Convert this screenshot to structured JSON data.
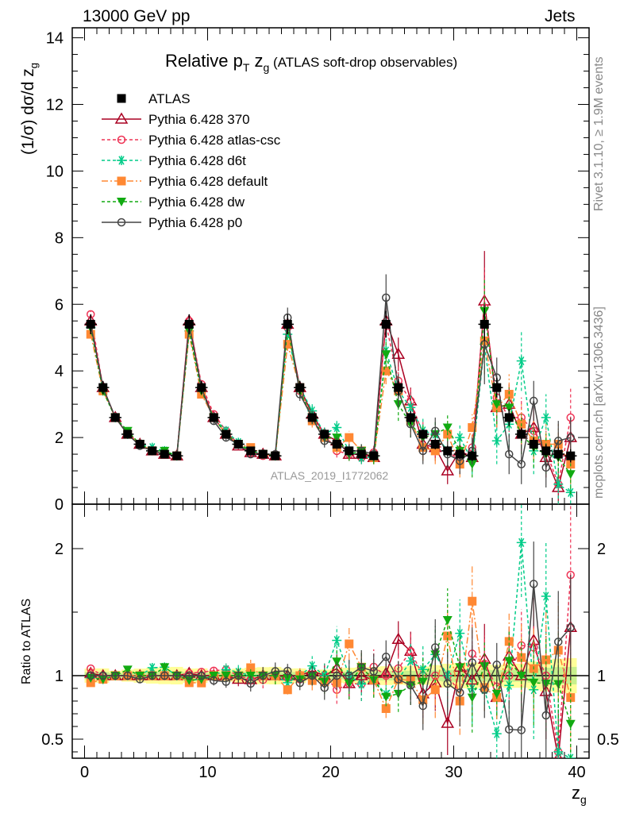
{
  "header": {
    "left": "13000 GeV pp",
    "right": "Jets"
  },
  "side_labels": {
    "rivet": "Rivet 3.1.10, ≥ 1.9M events",
    "mcplots": "mcplots.cern.ch [arXiv:1306.3436]"
  },
  "watermark": "ATLAS_2019_I1772062",
  "chart_data": {
    "type": "line",
    "title": {
      "main": "Relative p",
      "sub": "T",
      "tail": " z",
      "tail_sub": "g",
      "note": " (ATLAS soft-drop observables)"
    },
    "xlabel": {
      "main": "z",
      "sub": "g"
    },
    "ylabel": "(1/σ) dσ/d z",
    "ylabel_sub": "g",
    "ratio_ylabel": "Ratio to ATLAS",
    "xlim": [
      -1,
      41
    ],
    "ylim": [
      0,
      14.3
    ],
    "ratio_ylim": [
      0.35,
      2.35
    ],
    "x_ticks": [
      0,
      10,
      20,
      30,
      40
    ],
    "y_ticks": [
      0,
      2,
      4,
      6,
      8,
      10,
      12,
      14
    ],
    "ratio_ticks": [
      0.5,
      1,
      2
    ],
    "x": [
      0.5,
      1.5,
      2.5,
      3.5,
      4.5,
      5.5,
      6.5,
      7.5,
      8.5,
      9.5,
      10.5,
      11.5,
      12.5,
      13.5,
      14.5,
      15.5,
      16.5,
      17.5,
      18.5,
      19.5,
      20.5,
      21.5,
      22.5,
      23.5,
      24.5,
      25.5,
      26.5,
      27.5,
      28.5,
      29.5,
      30.5,
      31.5,
      32.5,
      33.5,
      34.5,
      35.5,
      36.5,
      37.5,
      38.5,
      39.5
    ],
    "data": {
      "name": "ATLAS",
      "values": [
        5.4,
        3.5,
        2.6,
        2.1,
        1.8,
        1.6,
        1.5,
        1.45,
        5.4,
        3.5,
        2.6,
        2.1,
        1.8,
        1.6,
        1.5,
        1.45,
        5.4,
        3.5,
        2.6,
        2.1,
        1.8,
        1.6,
        1.5,
        1.45,
        5.4,
        3.5,
        2.6,
        2.1,
        1.8,
        1.6,
        1.5,
        1.45,
        5.4,
        3.5,
        2.6,
        2.1,
        1.8,
        1.6,
        1.5,
        1.45
      ],
      "errors": [
        0.3,
        0.2,
        0.1,
        0.1,
        0.1,
        0.1,
        0.1,
        0.1,
        0.3,
        0.2,
        0.1,
        0.1,
        0.1,
        0.1,
        0.1,
        0.1,
        0.3,
        0.2,
        0.1,
        0.1,
        0.1,
        0.1,
        0.1,
        0.1,
        0.4,
        0.25,
        0.2,
        0.15,
        0.15,
        0.15,
        0.15,
        0.15,
        0.5,
        0.3,
        0.25,
        0.2,
        0.2,
        0.2,
        0.2,
        0.2
      ]
    },
    "series": [
      {
        "name": "Pythia 6.428 370",
        "color": "#aa0022",
        "dash": "",
        "marker": "triangle-open",
        "values": [
          5.5,
          3.5,
          2.6,
          2.1,
          1.8,
          1.6,
          1.5,
          1.45,
          5.5,
          3.5,
          2.6,
          2.1,
          1.75,
          1.55,
          1.5,
          1.45,
          5.4,
          3.5,
          2.7,
          2.1,
          1.9,
          1.5,
          1.5,
          1.4,
          5.5,
          4.5,
          3.1,
          1.8,
          1.7,
          1.0,
          1.6,
          1.4,
          6.1,
          2.9,
          3.0,
          2.1,
          2.3,
          1.4,
          0.5,
          2.0
        ],
        "errors": [
          0.1,
          0.1,
          0.05,
          0.05,
          0.05,
          0.05,
          0.05,
          0.05,
          0.1,
          0.1,
          0.1,
          0.1,
          0.1,
          0.1,
          0.1,
          0.1,
          0.2,
          0.2,
          0.2,
          0.2,
          0.2,
          0.2,
          0.2,
          0.2,
          0.4,
          0.5,
          0.4,
          0.4,
          0.4,
          0.4,
          0.4,
          0.4,
          1.5,
          0.6,
          0.6,
          0.6,
          0.6,
          0.6,
          0.6,
          0.6
        ]
      },
      {
        "name": "Pythia 6.428 atlas-csc",
        "color": "#ee3355",
        "dash": "4,3",
        "marker": "circle-open",
        "values": [
          5.7,
          3.5,
          2.6,
          2.1,
          1.8,
          1.6,
          1.5,
          1.45,
          5.5,
          3.6,
          2.7,
          2.2,
          1.8,
          1.55,
          1.45,
          1.45,
          5.3,
          3.4,
          2.6,
          2.1,
          1.6,
          1.5,
          1.4,
          1.55,
          5.4,
          3.7,
          3.1,
          2.1,
          1.8,
          1.6,
          1.3,
          1.7,
          5.9,
          3.2,
          2.6,
          2.6,
          2.2,
          1.6,
          0.6,
          2.6
        ],
        "errors": [
          0.1,
          0.1,
          0.05,
          0.05,
          0.05,
          0.05,
          0.05,
          0.05,
          0.1,
          0.1,
          0.1,
          0.1,
          0.1,
          0.1,
          0.1,
          0.1,
          0.2,
          0.2,
          0.2,
          0.2,
          0.2,
          0.2,
          0.2,
          0.2,
          0.4,
          0.5,
          0.4,
          0.4,
          0.4,
          0.4,
          0.4,
          0.4,
          1.2,
          0.6,
          0.6,
          0.6,
          0.6,
          0.6,
          0.6,
          0.9
        ]
      },
      {
        "name": "Pythia 6.428 d6t",
        "color": "#00cc88",
        "dash": "4,3",
        "marker": "star",
        "values": [
          5.3,
          3.4,
          2.6,
          2.1,
          1.8,
          1.7,
          1.6,
          1.45,
          5.2,
          3.4,
          2.6,
          2.2,
          1.85,
          1.6,
          1.5,
          1.45,
          5.1,
          3.5,
          2.8,
          2.1,
          2.3,
          1.6,
          1.4,
          1.4,
          4.6,
          3.4,
          2.9,
          2.2,
          2.1,
          1.6,
          2.0,
          1.3,
          4.8,
          1.9,
          2.4,
          4.3,
          1.6,
          2.6,
          0.6,
          0.35
        ],
        "errors": [
          0.1,
          0.1,
          0.05,
          0.05,
          0.05,
          0.05,
          0.05,
          0.05,
          0.1,
          0.1,
          0.1,
          0.1,
          0.1,
          0.1,
          0.1,
          0.1,
          0.2,
          0.2,
          0.2,
          0.2,
          0.2,
          0.2,
          0.2,
          0.2,
          0.4,
          0.5,
          0.4,
          0.4,
          0.4,
          0.4,
          0.4,
          0.4,
          0.9,
          0.7,
          0.7,
          0.9,
          0.7,
          0.7,
          0.6,
          0.5
        ]
      },
      {
        "name": "Pythia 6.428 default",
        "color": "#ff8833",
        "dash": "8,3,2,3",
        "marker": "square",
        "values": [
          5.1,
          3.4,
          2.6,
          2.1,
          1.8,
          1.6,
          1.5,
          1.45,
          5.1,
          3.3,
          2.6,
          2.1,
          1.8,
          1.7,
          1.5,
          1.45,
          4.8,
          3.5,
          2.5,
          2.0,
          1.7,
          2.0,
          1.6,
          1.4,
          4.0,
          3.4,
          2.5,
          1.7,
          1.6,
          2.1,
          1.2,
          2.3,
          4.9,
          2.9,
          3.3,
          2.4,
          1.9,
          1.8,
          1.8,
          1.2
        ],
        "errors": [
          0.1,
          0.1,
          0.05,
          0.05,
          0.05,
          0.05,
          0.05,
          0.05,
          0.1,
          0.1,
          0.1,
          0.1,
          0.1,
          0.1,
          0.1,
          0.1,
          0.2,
          0.2,
          0.2,
          0.2,
          0.2,
          0.2,
          0.2,
          0.2,
          0.4,
          0.5,
          0.4,
          0.4,
          0.4,
          0.4,
          0.4,
          0.4,
          1.0,
          0.6,
          0.6,
          0.6,
          0.6,
          0.6,
          0.6,
          0.6
        ]
      },
      {
        "name": "Pythia 6.428 dw",
        "color": "#11aa11",
        "dash": "4,3",
        "marker": "triangle-down",
        "values": [
          5.3,
          3.4,
          2.6,
          2.2,
          1.8,
          1.6,
          1.6,
          1.45,
          5.2,
          3.4,
          2.6,
          2.1,
          1.8,
          1.6,
          1.5,
          1.45,
          5.3,
          3.4,
          2.6,
          2.0,
          2.0,
          1.5,
          1.6,
          1.4,
          4.5,
          3.0,
          2.4,
          2.0,
          2.1,
          2.3,
          1.6,
          1.2,
          5.8,
          3.0,
          2.9,
          2.1,
          1.7,
          1.5,
          1.4,
          0.9
        ],
        "errors": [
          0.1,
          0.1,
          0.05,
          0.05,
          0.05,
          0.05,
          0.05,
          0.05,
          0.1,
          0.1,
          0.1,
          0.1,
          0.1,
          0.1,
          0.1,
          0.1,
          0.2,
          0.2,
          0.2,
          0.2,
          0.2,
          0.2,
          0.2,
          0.2,
          0.4,
          0.5,
          0.4,
          0.4,
          0.4,
          0.4,
          0.4,
          0.4,
          1.0,
          0.6,
          0.6,
          0.6,
          0.6,
          0.6,
          0.6,
          0.6
        ]
      },
      {
        "name": "Pythia 6.428 p0",
        "color": "#444444",
        "dash": "",
        "marker": "circle-open",
        "values": [
          5.4,
          3.5,
          2.6,
          2.1,
          1.75,
          1.6,
          1.5,
          1.45,
          5.4,
          3.5,
          2.5,
          2.0,
          1.8,
          1.5,
          1.5,
          1.5,
          5.6,
          3.3,
          2.6,
          1.9,
          1.8,
          1.6,
          1.6,
          1.5,
          6.2,
          3.4,
          2.4,
          1.6,
          2.2,
          1.5,
          1.3,
          1.6,
          4.8,
          3.8,
          1.5,
          1.2,
          3.1,
          1.1,
          1.9,
          2.0
        ],
        "errors": [
          0.1,
          0.1,
          0.05,
          0.05,
          0.05,
          0.05,
          0.05,
          0.05,
          0.1,
          0.1,
          0.1,
          0.1,
          0.1,
          0.1,
          0.1,
          0.1,
          0.3,
          0.2,
          0.2,
          0.2,
          0.2,
          0.2,
          0.2,
          0.2,
          0.7,
          0.5,
          0.4,
          0.4,
          0.4,
          0.4,
          0.4,
          0.4,
          1.2,
          0.6,
          0.6,
          0.6,
          0.6,
          0.6,
          0.6,
          0.6
        ]
      }
    ]
  }
}
